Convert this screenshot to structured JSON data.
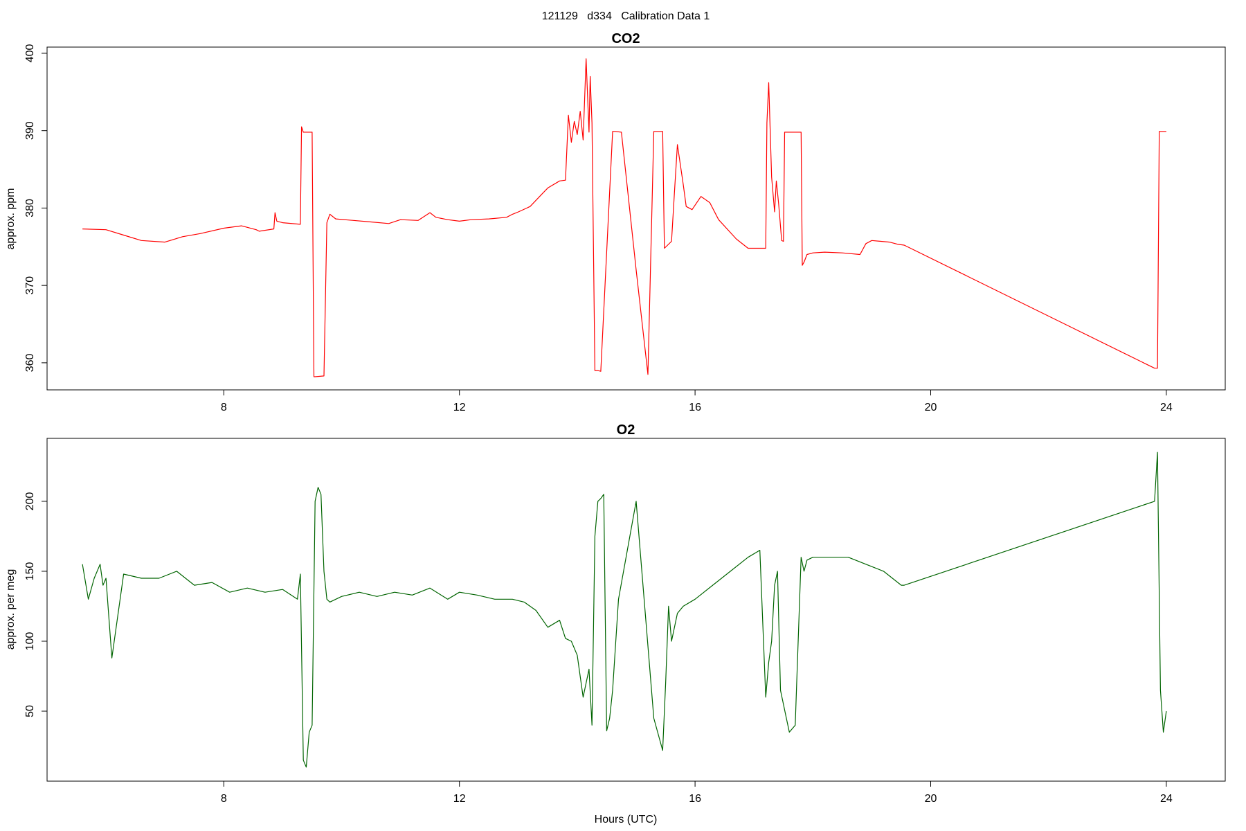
{
  "figure": {
    "title": "121129   d334   Calibration Data 1",
    "xlabel": "Hours (UTC)"
  },
  "colors": {
    "co2": "#ff0000",
    "o2": "#006400"
  },
  "chart_data": [
    {
      "type": "line",
      "title": "CO2",
      "xlabel": "",
      "ylabel": "approx. ppm",
      "xlim": [
        5.0,
        25.0
      ],
      "ylim": [
        356.5,
        400.8
      ],
      "xticks": [
        "8",
        "12",
        "16",
        "20",
        "24"
      ],
      "yticks": [
        "360",
        "370",
        "380",
        "390",
        "400"
      ],
      "series": [
        {
          "x": [
            5.6,
            6.0,
            6.3,
            6.6,
            7.0,
            7.3,
            7.6,
            8.0,
            8.3,
            8.55,
            8.6,
            8.85,
            8.87,
            8.9,
            9.0,
            9.3,
            9.32,
            9.35,
            9.5,
            9.53,
            9.55,
            9.7,
            9.75,
            9.8,
            9.9,
            10.2,
            10.5,
            10.8,
            11.0,
            11.3,
            11.5,
            11.6,
            11.8,
            12.0,
            12.2,
            12.5,
            12.8,
            12.9,
            13.0,
            13.2,
            13.4,
            13.5,
            13.7,
            13.8,
            13.85,
            13.9,
            13.95,
            14.0,
            14.05,
            14.1,
            14.15,
            14.2,
            14.22,
            14.25,
            14.3,
            14.35,
            14.4,
            14.6,
            14.65,
            14.75,
            15.0,
            15.2,
            15.3,
            15.45,
            15.48,
            15.6,
            15.65,
            15.7,
            15.8,
            15.85,
            15.95,
            16.1,
            16.25,
            16.4,
            16.7,
            16.9,
            17.2,
            17.22,
            17.25,
            17.3,
            17.35,
            17.38,
            17.42,
            17.47,
            17.5,
            17.52,
            17.55,
            17.8,
            17.82,
            17.85,
            17.9,
            18.0,
            18.2,
            18.5,
            18.8,
            18.9,
            19.0,
            19.3,
            19.45,
            19.55,
            23.8,
            23.85,
            23.88,
            23.92,
            24.0
          ],
          "y": [
            377.3,
            377.2,
            376.5,
            375.8,
            375.6,
            376.3,
            376.7,
            377.4,
            377.7,
            377.2,
            377.0,
            377.3,
            379.4,
            378.3,
            378.1,
            377.9,
            390.5,
            389.8,
            389.8,
            358.2,
            358.2,
            358.3,
            378.1,
            379.2,
            378.6,
            378.4,
            378.2,
            378.0,
            378.5,
            378.4,
            379.4,
            378.8,
            378.5,
            378.3,
            378.5,
            378.6,
            378.8,
            379.2,
            379.5,
            380.2,
            381.8,
            382.6,
            383.5,
            383.6,
            392.0,
            388.5,
            391.2,
            389.5,
            392.5,
            388.8,
            399.3,
            389.8,
            397.0,
            391.0,
            359.0,
            359.0,
            358.9,
            389.9,
            389.9,
            389.8,
            372.0,
            358.5,
            389.9,
            389.9,
            374.8,
            375.7,
            382.0,
            388.2,
            383.0,
            380.2,
            379.8,
            381.5,
            380.7,
            378.5,
            376.0,
            374.8,
            374.8,
            391.0,
            396.2,
            384.0,
            379.5,
            383.5,
            380.5,
            375.8,
            375.7,
            389.8,
            389.8,
            389.8,
            372.6,
            373.0,
            374.0,
            374.2,
            374.3,
            374.2,
            374.0,
            375.4,
            375.8,
            375.6,
            375.3,
            375.2,
            359.3,
            359.3,
            389.9,
            389.9,
            389.9
          ]
        }
      ]
    },
    {
      "type": "line",
      "title": "O2",
      "xlabel": "Hours (UTC)",
      "ylabel": "approx. per meg",
      "xlim": [
        5.0,
        25.0
      ],
      "ylim": [
        0.0,
        245.0
      ],
      "xticks": [
        "8",
        "12",
        "16",
        "20",
        "24"
      ],
      "yticks": [
        "50",
        "100",
        "150",
        "200"
      ],
      "series": [
        {
          "x": [
            5.6,
            5.7,
            5.8,
            5.9,
            5.95,
            6.0,
            6.1,
            6.3,
            6.6,
            6.9,
            7.2,
            7.5,
            7.8,
            8.1,
            8.4,
            8.7,
            9.0,
            9.25,
            9.3,
            9.35,
            9.4,
            9.45,
            9.5,
            9.55,
            9.6,
            9.65,
            9.7,
            9.75,
            9.8,
            10.0,
            10.3,
            10.6,
            10.9,
            11.2,
            11.5,
            11.8,
            12.0,
            12.3,
            12.6,
            12.9,
            13.1,
            13.3,
            13.5,
            13.7,
            13.8,
            13.9,
            14.0,
            14.1,
            14.2,
            14.25,
            14.3,
            14.35,
            14.4,
            14.45,
            14.5,
            14.55,
            14.6,
            14.7,
            15.0,
            15.3,
            15.45,
            15.5,
            15.55,
            15.6,
            15.7,
            15.8,
            16.0,
            16.3,
            16.6,
            16.9,
            17.1,
            17.2,
            17.25,
            17.3,
            17.35,
            17.4,
            17.45,
            17.55,
            17.6,
            17.7,
            17.8,
            17.85,
            17.9,
            18.0,
            18.3,
            18.6,
            18.9,
            19.2,
            19.5,
            19.55,
            23.8,
            23.85,
            23.9,
            23.95,
            24.0
          ],
          "y": [
            155,
            130,
            145,
            155,
            140,
            145,
            88,
            148,
            145,
            145,
            150,
            140,
            142,
            135,
            138,
            135,
            137,
            130,
            148,
            15,
            10,
            35,
            40,
            200,
            210,
            205,
            150,
            130,
            128,
            132,
            135,
            132,
            135,
            133,
            138,
            130,
            135,
            133,
            130,
            130,
            128,
            122,
            110,
            115,
            102,
            100,
            90,
            60,
            80,
            40,
            175,
            200,
            202,
            205,
            36,
            45,
            65,
            130,
            200,
            45,
            22,
            70,
            125,
            100,
            120,
            125,
            130,
            140,
            150,
            160,
            165,
            60,
            85,
            100,
            140,
            150,
            65,
            45,
            35,
            40,
            160,
            150,
            158,
            160,
            160,
            160,
            155,
            150,
            140,
            140,
            200,
            235,
            65,
            35,
            50
          ]
        }
      ]
    }
  ]
}
